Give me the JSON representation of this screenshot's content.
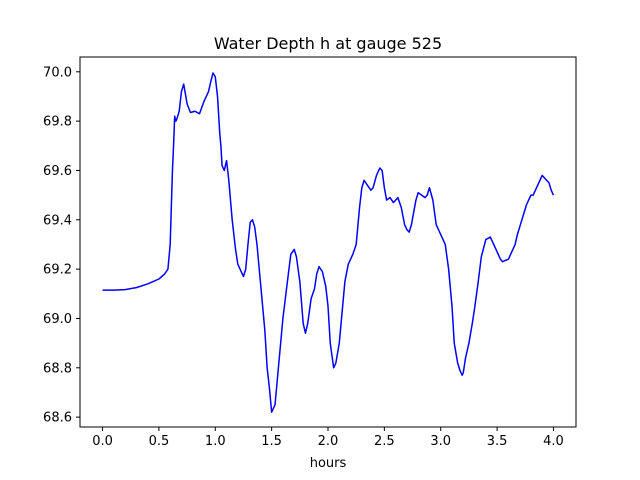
{
  "chart_data": {
    "type": "line",
    "title": "Water Depth h at gauge 525",
    "xlabel": "hours",
    "ylabel": "",
    "xlim": [
      -0.2,
      4.2
    ],
    "ylim": [
      68.56,
      70.06
    ],
    "xticks": [
      "0.0",
      "0.5",
      "1.0",
      "1.5",
      "2.0",
      "2.5",
      "3.0",
      "3.5",
      "4.0"
    ],
    "yticks": [
      "68.6",
      "68.8",
      "69.0",
      "69.2",
      "69.4",
      "69.6",
      "69.8",
      "70.0"
    ],
    "grid": false,
    "series": [
      {
        "color": "#0000ff",
        "x": [
          0.0,
          0.1,
          0.2,
          0.3,
          0.4,
          0.5,
          0.55,
          0.58,
          0.6,
          0.61,
          0.62,
          0.63,
          0.64,
          0.65,
          0.66,
          0.68,
          0.7,
          0.72,
          0.75,
          0.78,
          0.82,
          0.86,
          0.9,
          0.94,
          0.96,
          0.98,
          1.0,
          1.02,
          1.04,
          1.05,
          1.06,
          1.08,
          1.1,
          1.12,
          1.15,
          1.18,
          1.2,
          1.22,
          1.25,
          1.27,
          1.29,
          1.31,
          1.33,
          1.35,
          1.37,
          1.4,
          1.42,
          1.44,
          1.46,
          1.48,
          1.5,
          1.53,
          1.56,
          1.6,
          1.64,
          1.67,
          1.7,
          1.72,
          1.75,
          1.78,
          1.8,
          1.82,
          1.85,
          1.88,
          1.9,
          1.92,
          1.95,
          1.98,
          2.0,
          2.02,
          2.05,
          2.07,
          2.1,
          2.13,
          2.15,
          2.18,
          2.2,
          2.22,
          2.25,
          2.28,
          2.3,
          2.32,
          2.35,
          2.38,
          2.4,
          2.43,
          2.46,
          2.48,
          2.5,
          2.52,
          2.55,
          2.58,
          2.6,
          2.62,
          2.65,
          2.68,
          2.7,
          2.72,
          2.74,
          2.76,
          2.78,
          2.8,
          2.83,
          2.86,
          2.88,
          2.9,
          2.93,
          2.96,
          3.0,
          3.04,
          3.07,
          3.1,
          3.12,
          3.15,
          3.17,
          3.19,
          3.2,
          3.22,
          3.25,
          3.28,
          3.3,
          3.33,
          3.36,
          3.4,
          3.44,
          3.47,
          3.5,
          3.53,
          3.55,
          3.57,
          3.6,
          3.62,
          3.64,
          3.66,
          3.68,
          3.7,
          3.72,
          3.74,
          3.76,
          3.78,
          3.8,
          3.82,
          3.84,
          3.86,
          3.88,
          3.9,
          3.92,
          3.94,
          3.96,
          3.98,
          4.0
        ],
        "y": [
          69.115,
          69.115,
          69.117,
          69.125,
          69.14,
          69.16,
          69.18,
          69.2,
          69.3,
          69.45,
          69.6,
          69.7,
          69.82,
          69.8,
          69.81,
          69.84,
          69.92,
          69.95,
          69.87,
          69.835,
          69.84,
          69.83,
          69.88,
          69.92,
          69.96,
          69.995,
          69.98,
          69.9,
          69.75,
          69.7,
          69.62,
          69.6,
          69.64,
          69.56,
          69.4,
          69.28,
          69.22,
          69.2,
          69.17,
          69.2,
          69.3,
          69.39,
          69.4,
          69.37,
          69.3,
          69.15,
          69.05,
          68.95,
          68.8,
          68.72,
          68.62,
          68.65,
          68.8,
          69.0,
          69.15,
          69.26,
          69.28,
          69.25,
          69.15,
          68.98,
          68.94,
          68.98,
          69.08,
          69.12,
          69.18,
          69.21,
          69.19,
          69.13,
          69.05,
          68.9,
          68.8,
          68.82,
          68.9,
          69.05,
          69.15,
          69.22,
          69.24,
          69.26,
          69.3,
          69.45,
          69.53,
          69.56,
          69.54,
          69.52,
          69.53,
          69.58,
          69.61,
          69.6,
          69.53,
          69.48,
          69.49,
          69.47,
          69.48,
          69.49,
          69.45,
          69.38,
          69.36,
          69.35,
          69.38,
          69.43,
          69.48,
          69.51,
          69.5,
          69.49,
          69.5,
          69.53,
          69.48,
          69.38,
          69.34,
          69.3,
          69.2,
          69.05,
          68.9,
          68.82,
          68.79,
          68.77,
          68.78,
          68.84,
          68.9,
          68.98,
          69.04,
          69.14,
          69.25,
          69.32,
          69.33,
          69.3,
          69.27,
          69.24,
          69.23,
          69.235,
          69.24,
          69.26,
          69.28,
          69.3,
          69.34,
          69.37,
          69.4,
          69.43,
          69.46,
          69.48,
          69.5,
          69.5,
          69.52,
          69.54,
          69.56,
          69.58,
          69.57,
          69.56,
          69.55,
          69.52,
          69.5
        ]
      }
    ]
  }
}
